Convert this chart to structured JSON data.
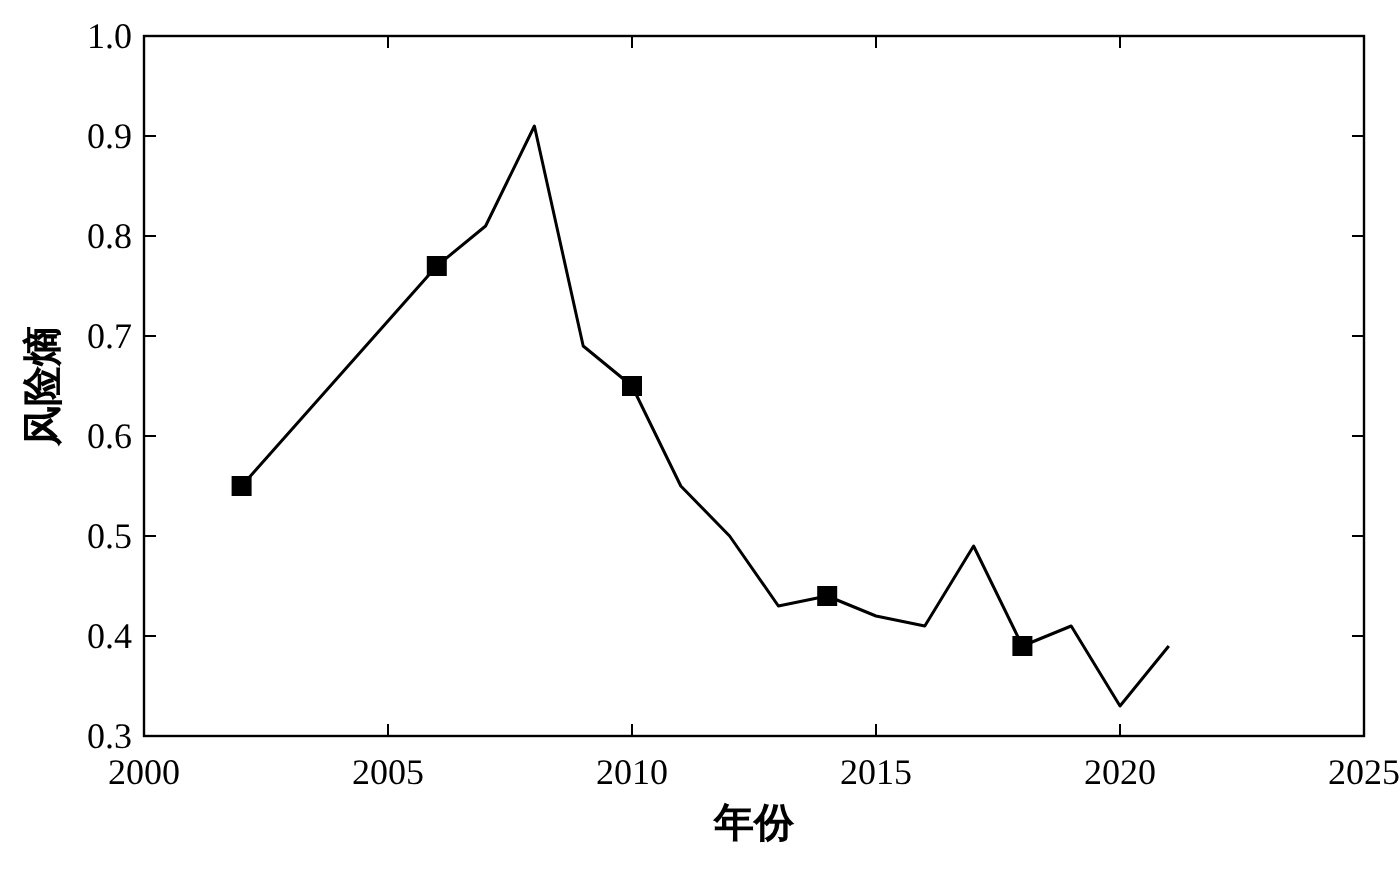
{
  "chart_data": {
    "type": "line",
    "xlabel": "年份",
    "ylabel": "风险熵",
    "xlim": [
      2000,
      2025
    ],
    "xticks": [
      2000,
      2005,
      2010,
      2015,
      2020,
      2025
    ],
    "ylim": [
      0.3,
      1.0
    ],
    "yticks": [
      {
        "value": 0.3,
        "label": "0.3"
      },
      {
        "value": 0.4,
        "label": "0.4"
      },
      {
        "value": 0.5,
        "label": "0.5"
      },
      {
        "value": 0.6,
        "label": "0.6"
      },
      {
        "value": 0.7,
        "label": "0.7"
      },
      {
        "value": 0.8,
        "label": "0.8"
      },
      {
        "value": 0.9,
        "label": "0.9"
      },
      {
        "value": 1.0,
        "label": "1.0"
      }
    ],
    "grid": false,
    "series": [
      {
        "color": "#000000",
        "marker": "none",
        "line_style": "solid",
        "x": [
          2002,
          2006,
          2007,
          2008,
          2009,
          2010,
          2011,
          2012,
          2013,
          2014,
          2015,
          2016,
          2017,
          2018,
          2019,
          2020,
          2021
        ],
        "values": [
          0.55,
          0.77,
          0.81,
          0.91,
          0.69,
          0.65,
          0.55,
          0.5,
          0.43,
          0.44,
          0.42,
          0.41,
          0.49,
          0.39,
          0.41,
          0.33,
          0.39
        ]
      },
      {
        "type": "scatter",
        "color": "#000000",
        "marker": "square",
        "x": [
          2002,
          2006,
          2010,
          2014,
          2018
        ],
        "values": [
          0.55,
          0.77,
          0.65,
          0.44,
          0.39
        ]
      }
    ]
  }
}
